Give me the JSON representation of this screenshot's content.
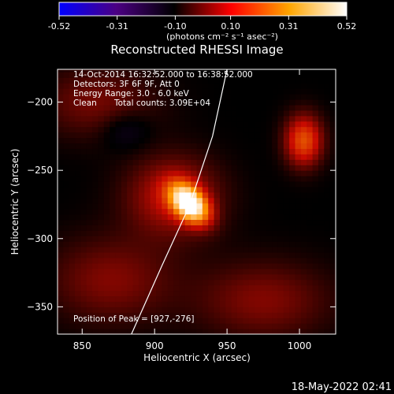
{
  "chart_data": {
    "type": "heatmap",
    "title": "Reconstructed RHESSI Image",
    "xlabel": "Heliocentric X (arcsec)",
    "ylabel": "Heliocentric Y (arcsec)",
    "xlim": [
      833,
      1025
    ],
    "ylim": [
      -370,
      -176
    ],
    "x_ticks": [
      850,
      900,
      950,
      1000
    ],
    "y_ticks": [
      -200,
      -250,
      -300,
      -350
    ],
    "colorbar": {
      "range": [
        -0.52,
        0.52
      ],
      "ticks": [
        "-0.52",
        "-0.31",
        "-0.10",
        "0.10",
        "0.31",
        "0.52"
      ],
      "unit_label": "(photons cm⁻² s⁻¹ asec⁻²)",
      "colors": [
        "#0000ff",
        "#4b0082",
        "#000000",
        "#ff0000",
        "#ffa500",
        "#ffffff"
      ]
    },
    "annotations": {
      "time_range": "14-Oct-2014 16:32:52.000 to 16:38:52.000",
      "detectors": "Detectors: 3F 6F 9F, Att 0",
      "energy": "Energy Range: 3.0 - 6.0 keV",
      "method": "Clean",
      "counts": "Total counts: 3.09E+04",
      "peak": "Position of Peak = [927,-276]"
    },
    "peak_position": [
      927,
      -276
    ],
    "limb_curve": [
      [
        884,
        -370
      ],
      [
        905,
        -320
      ],
      [
        924,
        -276
      ],
      [
        940,
        -225
      ],
      [
        950,
        -176
      ]
    ],
    "sources": [
      {
        "x": 924,
        "y": -274,
        "amplitude": 0.52,
        "sigma_x": 7,
        "sigma_y": 11,
        "angle_deg": 40
      },
      {
        "x": 913,
        "y": -269,
        "amplitude": 0.16,
        "sigma_x": 22,
        "sigma_y": 20,
        "angle_deg": 0
      },
      {
        "x": 1003,
        "y": -228,
        "amplitude": 0.24,
        "sigma_x": 9,
        "sigma_y": 13,
        "angle_deg": 0
      },
      {
        "x": 870,
        "y": -330,
        "amplitude": 0.1,
        "sigma_x": 30,
        "sigma_y": 22,
        "angle_deg": 0
      },
      {
        "x": 975,
        "y": -345,
        "amplitude": 0.1,
        "sigma_x": 32,
        "sigma_y": 20,
        "angle_deg": 0
      },
      {
        "x": 860,
        "y": -200,
        "amplitude": 0.09,
        "sigma_x": 28,
        "sigma_y": 18,
        "angle_deg": 0
      },
      {
        "x": 880,
        "y": -220,
        "amplitude": -0.06,
        "sigma_x": 12,
        "sigma_y": 10,
        "angle_deg": 0
      }
    ]
  },
  "footer": {
    "timestamp": "18-May-2022 02:41"
  }
}
